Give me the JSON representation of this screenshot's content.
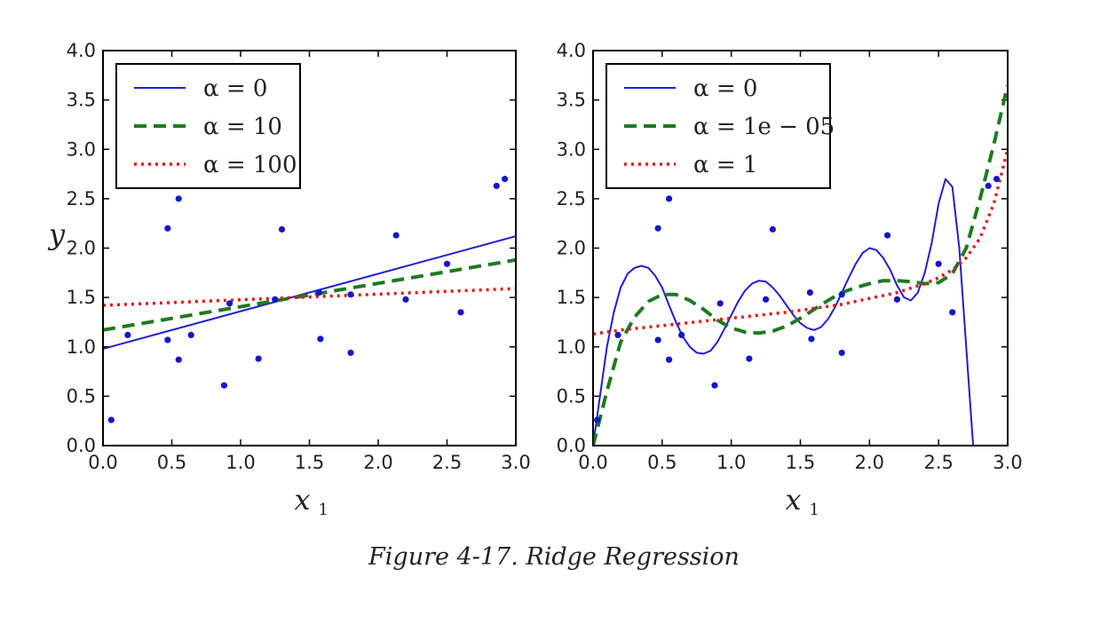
{
  "caption": "Figure 4-17. Ridge Regression",
  "colors": {
    "blue": "#1f1fd0",
    "green": "#1f7a1f",
    "red": "#e01818",
    "points": "#1515cc"
  },
  "chart_data": [
    {
      "type": "line",
      "xlabel": "x1",
      "ylabel": "y",
      "xlim": [
        0,
        3
      ],
      "ylim": [
        0,
        4
      ],
      "xticks": [
        "0.0",
        "0.5",
        "1.0",
        "1.5",
        "2.0",
        "2.5",
        "3.0"
      ],
      "yticks": [
        "0.0",
        "0.5",
        "1.0",
        "1.5",
        "2.0",
        "2.5",
        "3.0",
        "3.5",
        "4.0"
      ],
      "legend_position": "top-left",
      "scatter": {
        "x": [
          0.06,
          0.18,
          0.47,
          0.47,
          0.55,
          0.55,
          0.64,
          0.88,
          0.92,
          1.13,
          1.25,
          1.3,
          1.57,
          1.58,
          1.8,
          1.8,
          2.13,
          2.2,
          2.5,
          2.6,
          2.86,
          2.92
        ],
        "y": [
          0.26,
          1.12,
          2.2,
          1.07,
          0.87,
          2.5,
          1.12,
          0.61,
          1.44,
          0.88,
          1.48,
          2.19,
          1.55,
          1.08,
          0.94,
          1.53,
          2.13,
          1.48,
          1.84,
          1.35,
          2.63,
          2.7
        ]
      },
      "series": [
        {
          "name": "α = 0",
          "style": "solid",
          "color": "#1f1fd0",
          "x": [
            0,
            3
          ],
          "y": [
            0.98,
            2.12
          ]
        },
        {
          "name": "α = 10",
          "style": "dashed",
          "color": "#1f7a1f",
          "x": [
            0,
            3
          ],
          "y": [
            1.17,
            1.88
          ]
        },
        {
          "name": "α = 100",
          "style": "dotted",
          "color": "#e01818",
          "x": [
            0,
            3
          ],
          "y": [
            1.42,
            1.59
          ]
        }
      ]
    },
    {
      "type": "line",
      "xlabel": "x1",
      "ylabel": "",
      "xlim": [
        0,
        3
      ],
      "ylim": [
        0,
        4
      ],
      "xticks": [
        "0.0",
        "0.5",
        "1.0",
        "1.5",
        "2.0",
        "2.5",
        "3.0"
      ],
      "yticks": [
        "0.0",
        "0.5",
        "1.0",
        "1.5",
        "2.0",
        "2.5",
        "3.0",
        "3.5",
        "4.0"
      ],
      "legend_position": "top-left",
      "scatter": {
        "x": [
          0.03,
          0.18,
          0.47,
          0.47,
          0.55,
          0.55,
          0.64,
          0.88,
          0.92,
          1.13,
          1.25,
          1.3,
          1.57,
          1.58,
          1.8,
          1.8,
          2.13,
          2.2,
          2.5,
          2.6,
          2.86,
          2.92
        ],
        "y": [
          0.26,
          1.12,
          2.2,
          1.07,
          0.87,
          2.5,
          1.12,
          0.61,
          1.44,
          0.88,
          1.48,
          2.19,
          1.55,
          1.08,
          0.94,
          1.53,
          2.13,
          1.48,
          1.84,
          1.35,
          2.63,
          2.7
        ]
      },
      "series": [
        {
          "name": "α = 0",
          "style": "solid",
          "color": "#1f1fd0",
          "x": [
            0.0,
            0.05,
            0.1,
            0.15,
            0.2,
            0.25,
            0.3,
            0.35,
            0.4,
            0.45,
            0.5,
            0.55,
            0.6,
            0.65,
            0.7,
            0.75,
            0.8,
            0.85,
            0.9,
            0.95,
            1.0,
            1.05,
            1.1,
            1.15,
            1.2,
            1.25,
            1.3,
            1.35,
            1.4,
            1.45,
            1.5,
            1.55,
            1.6,
            1.65,
            1.7,
            1.75,
            1.8,
            1.85,
            1.9,
            1.95,
            2.0,
            2.05,
            2.1,
            2.15,
            2.2,
            2.25,
            2.3,
            2.35,
            2.4,
            2.45,
            2.5,
            2.55,
            2.6,
            2.65,
            2.7,
            2.75,
            2.8,
            2.85,
            2.9,
            2.95,
            3.0
          ],
          "y": [
            0.0,
            0.5,
            1.0,
            1.35,
            1.6,
            1.74,
            1.8,
            1.82,
            1.8,
            1.72,
            1.6,
            1.42,
            1.25,
            1.1,
            1.0,
            0.94,
            0.93,
            0.96,
            1.05,
            1.18,
            1.32,
            1.46,
            1.57,
            1.64,
            1.67,
            1.66,
            1.6,
            1.52,
            1.42,
            1.32,
            1.24,
            1.19,
            1.17,
            1.2,
            1.28,
            1.4,
            1.55,
            1.7,
            1.84,
            1.95,
            2.0,
            1.98,
            1.9,
            1.78,
            1.62,
            1.5,
            1.47,
            1.55,
            1.75,
            2.05,
            2.45,
            2.7,
            2.62,
            2.0,
            1.0,
            0.0,
            0.0,
            0.0,
            0.0,
            0.0,
            0.0
          ]
        },
        {
          "name": "α = 1e − 05",
          "style": "dashed",
          "color": "#1f7a1f",
          "x": [
            0.0,
            0.1,
            0.2,
            0.3,
            0.4,
            0.5,
            0.6,
            0.7,
            0.8,
            0.9,
            1.0,
            1.1,
            1.2,
            1.3,
            1.4,
            1.5,
            1.6,
            1.7,
            1.8,
            1.9,
            2.0,
            2.1,
            2.2,
            2.3,
            2.4,
            2.5,
            2.6,
            2.7,
            2.8,
            2.9,
            3.0
          ],
          "y": [
            0.0,
            0.55,
            1.05,
            1.3,
            1.46,
            1.53,
            1.53,
            1.47,
            1.38,
            1.27,
            1.19,
            1.15,
            1.14,
            1.16,
            1.21,
            1.29,
            1.38,
            1.47,
            1.55,
            1.6,
            1.64,
            1.67,
            1.67,
            1.66,
            1.64,
            1.65,
            1.74,
            2.0,
            2.5,
            3.05,
            3.65
          ]
        },
        {
          "name": "α = 1",
          "style": "dotted",
          "color": "#e01818",
          "x": [
            0.0,
            0.2,
            0.4,
            0.6,
            0.8,
            1.0,
            1.2,
            1.4,
            1.6,
            1.8,
            2.0,
            2.2,
            2.4,
            2.5,
            2.6,
            2.7,
            2.8,
            2.9,
            3.0
          ],
          "y": [
            1.13,
            1.17,
            1.2,
            1.23,
            1.26,
            1.29,
            1.32,
            1.35,
            1.39,
            1.43,
            1.49,
            1.55,
            1.64,
            1.7,
            1.78,
            1.9,
            2.1,
            2.45,
            3.0
          ]
        }
      ]
    }
  ],
  "legends": [
    [
      "α = 0",
      "α = 10",
      "α = 100"
    ],
    [
      "α = 0",
      "α = 1e − 05",
      "α = 1"
    ]
  ]
}
